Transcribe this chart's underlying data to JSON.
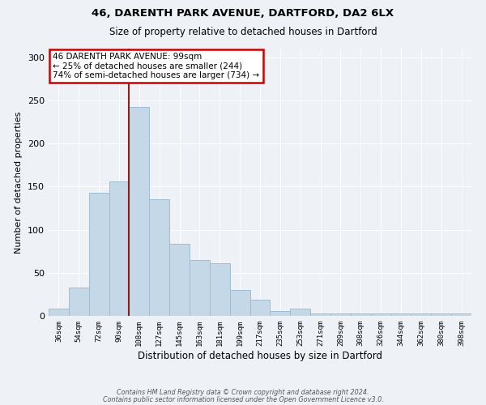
{
  "title1": "46, DARENTH PARK AVENUE, DARTFORD, DA2 6LX",
  "title2": "Size of property relative to detached houses in Dartford",
  "xlabel": "Distribution of detached houses by size in Dartford",
  "ylabel": "Number of detached properties",
  "categories": [
    "36sqm",
    "54sqm",
    "72sqm",
    "90sqm",
    "108sqm",
    "127sqm",
    "145sqm",
    "163sqm",
    "181sqm",
    "199sqm",
    "217sqm",
    "235sqm",
    "253sqm",
    "271sqm",
    "289sqm",
    "308sqm",
    "326sqm",
    "344sqm",
    "362sqm",
    "380sqm",
    "398sqm"
  ],
  "values": [
    8,
    33,
    143,
    156,
    242,
    135,
    84,
    65,
    61,
    30,
    19,
    6,
    8,
    3,
    3,
    3,
    3,
    3,
    3,
    3,
    3
  ],
  "bar_color": "#c5d8e8",
  "bar_edge_color": "#a0bcd4",
  "vline_color": "#8b1a1a",
  "annotation_text": "46 DARENTH PARK AVENUE: 99sqm\n← 25% of detached houses are smaller (244)\n74% of semi-detached houses are larger (734) →",
  "annotation_box_color": "white",
  "annotation_box_edge_color": "#cc0000",
  "ylim": [
    0,
    310
  ],
  "yticks": [
    0,
    50,
    100,
    150,
    200,
    250,
    300
  ],
  "background_color": "#eef2f7",
  "footer1": "Contains HM Land Registry data © Crown copyright and database right 2024.",
  "footer2": "Contains public sector information licensed under the Open Government Licence v3.0."
}
